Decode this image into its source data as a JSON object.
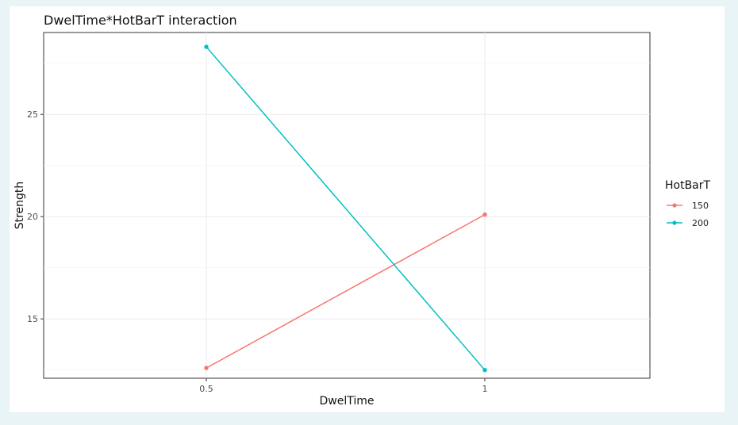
{
  "chart_data": {
    "type": "line",
    "title": "DwelTime*HotBarT interaction",
    "xlabel": "DwelTime",
    "ylabel": "Strength",
    "x": [
      "0.5",
      "1"
    ],
    "x_ticks": [
      "0.5",
      "1"
    ],
    "y_ticks": [
      15,
      20,
      25
    ],
    "ylim": [
      12.1,
      29.0
    ],
    "grid": true,
    "legend": {
      "title": "HotBarT",
      "position": "right",
      "entries": [
        "150",
        "200"
      ]
    },
    "series": [
      {
        "name": "150",
        "color": "#F8766D",
        "values": [
          12.6,
          20.1
        ]
      },
      {
        "name": "200",
        "color": "#00BFC4",
        "values": [
          28.3,
          12.5
        ]
      }
    ]
  }
}
